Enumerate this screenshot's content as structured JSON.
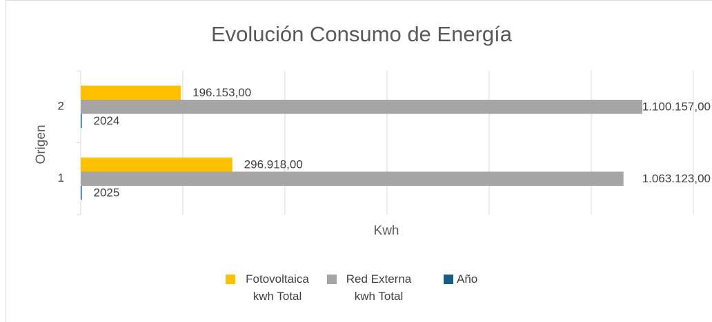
{
  "chart_data": {
    "type": "bar",
    "orientation": "horizontal",
    "title": "Evolución Consumo de Energía",
    "x_label": "Kwh",
    "y_label": "Origen",
    "categories": [
      "1",
      "2"
    ],
    "series": [
      {
        "name": "Fotovoltaica kwh Total",
        "color": "#FFC000",
        "values": [
          296918,
          196153
        ],
        "value_labels": [
          "296.918,00",
          "196.153,00"
        ]
      },
      {
        "name": "Red Externa kwh Total",
        "color": "#A5A5A5",
        "values": [
          1063123,
          1100157
        ],
        "value_labels": [
          "1.063.123,00",
          "1.100.157,00"
        ]
      },
      {
        "name": "Año",
        "color": "#156082",
        "values": [
          2025,
          2024
        ]
      }
    ],
    "xlim": [
      0,
      1200000
    ],
    "xticks": [
      0,
      200000,
      400000,
      600000,
      800000,
      1000000,
      1200000
    ],
    "grid": true,
    "legend": "bottom"
  }
}
